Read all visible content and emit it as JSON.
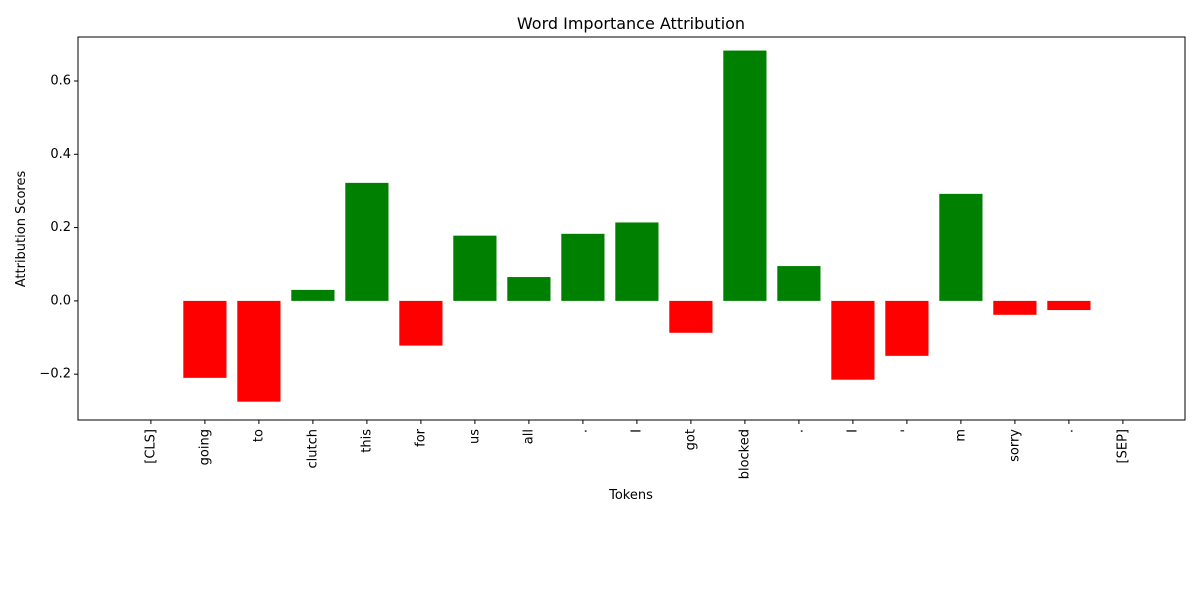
{
  "chart_data": {
    "type": "bar",
    "title": "Word Importance Attribution",
    "xlabel": "Tokens",
    "ylabel": "Attribution Scores",
    "ylim": [
      -0.325,
      0.72
    ],
    "yticks": [
      -0.2,
      0.0,
      0.2,
      0.4,
      0.6
    ],
    "ytick_labels": [
      "−0.2",
      "0.0",
      "0.2",
      "0.4",
      "0.6"
    ],
    "categories": [
      "[CLS]",
      "going",
      "to",
      "clutch",
      "this",
      "for",
      "us",
      "all",
      ".",
      "I",
      "got",
      "blocked",
      ".",
      "I",
      "'",
      "m",
      "sorry",
      ".",
      "[SEP]"
    ],
    "values": [
      0.0,
      -0.21,
      -0.275,
      0.03,
      0.322,
      -0.122,
      0.178,
      0.065,
      0.183,
      0.214,
      -0.087,
      0.683,
      0.095,
      -0.215,
      -0.15,
      0.292,
      -0.038,
      -0.025,
      0.0
    ],
    "colors": {
      "positive": "#008000",
      "negative": "#ff0000"
    },
    "grid": false,
    "legend": "none"
  }
}
